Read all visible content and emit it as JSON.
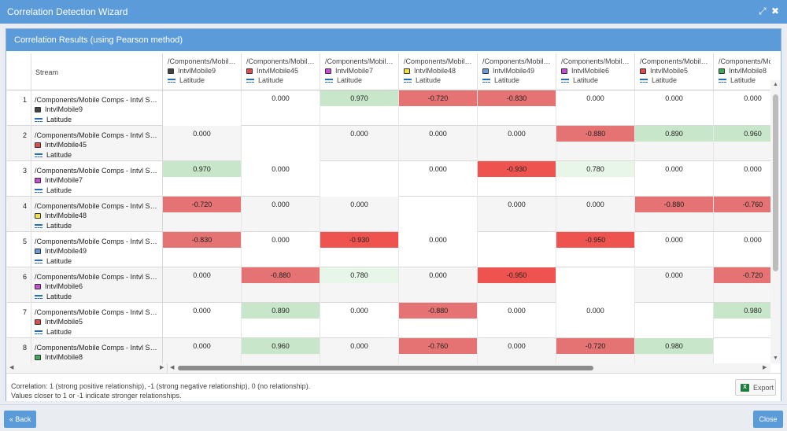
{
  "window": {
    "title": "Correlation Detection Wizard"
  },
  "panel": {
    "title": "Correlation Results (using Pearson method)"
  },
  "grid": {
    "stream_header": "Stream",
    "columns": [
      {
        "path": "/Components/Mobile Comps - Intvl Streams",
        "name": "IntvlMobile9",
        "chip_color": "#444444",
        "metric": "Latitude"
      },
      {
        "path": "/Components/Mobile Comps - Intvl Streams",
        "name": "IntvlMobile45",
        "chip_color": "#e14b4b",
        "metric": "Latitude"
      },
      {
        "path": "/Components/Mobile Comps - Intvl Streams",
        "name": "IntvlMobile7",
        "chip_color": "#c54fd4",
        "metric": "Latitude"
      },
      {
        "path": "/Components/Mobile Comps - Intvl Streams",
        "name": "IntvlMobile48",
        "chip_color": "#f0e04a",
        "metric": "Latitude"
      },
      {
        "path": "/Components/Mobile Comps - Intvl Streams",
        "name": "IntvlMobile49",
        "chip_color": "#6a9dd6",
        "metric": "Latitude"
      },
      {
        "path": "/Components/Mobile Comps - Intvl Streams",
        "name": "IntvlMobile6",
        "chip_color": "#c54fd4",
        "metric": "Latitude"
      },
      {
        "path": "/Components/Mobile Comps - Intvl Streams",
        "name": "IntvlMobile5",
        "chip_color": "#e14b4b",
        "metric": "Latitude"
      },
      {
        "path": "/Components/Mobile Comps - Intvl Streams",
        "name": "IntvlMobile8",
        "chip_color": "#3faa5a",
        "metric": "Latitude"
      }
    ],
    "rows": [
      {
        "num": "1",
        "path": "/Components/Mobile Comps - Intvl Streams",
        "name": "IntvlMobile9",
        "chip_color": "#444444",
        "metric": "Latitude",
        "values": [
          "",
          "0.000",
          "0.970",
          "-0.720",
          "-0.830",
          "0.000",
          "0.000",
          "0.000"
        ]
      },
      {
        "num": "2",
        "path": "/Components/Mobile Comps - Intvl Streams",
        "name": "IntvlMobile45",
        "chip_color": "#e14b4b",
        "metric": "Latitude",
        "values": [
          "0.000",
          "",
          "0.000",
          "0.000",
          "0.000",
          "-0.880",
          "0.890",
          "0.960"
        ]
      },
      {
        "num": "3",
        "path": "/Components/Mobile Comps - Intvl Streams",
        "name": "IntvlMobile7",
        "chip_color": "#c54fd4",
        "metric": "Latitude",
        "values": [
          "0.970",
          "0.000",
          "",
          "0.000",
          "-0.930",
          "0.780",
          "0.000",
          "0.000"
        ]
      },
      {
        "num": "4",
        "path": "/Components/Mobile Comps - Intvl Streams",
        "name": "IntvlMobile48",
        "chip_color": "#f0e04a",
        "metric": "Latitude",
        "values": [
          "-0.720",
          "0.000",
          "0.000",
          "",
          "0.000",
          "0.000",
          "-0.880",
          "-0.760"
        ]
      },
      {
        "num": "5",
        "path": "/Components/Mobile Comps - Intvl Streams",
        "name": "IntvlMobile49",
        "chip_color": "#6a9dd6",
        "metric": "Latitude",
        "values": [
          "-0.830",
          "0.000",
          "-0.930",
          "0.000",
          "",
          "-0.950",
          "0.000",
          "0.000"
        ]
      },
      {
        "num": "6",
        "path": "/Components/Mobile Comps - Intvl Streams",
        "name": "IntvlMobile6",
        "chip_color": "#c54fd4",
        "metric": "Latitude",
        "values": [
          "0.000",
          "-0.880",
          "0.780",
          "0.000",
          "-0.950",
          "",
          "0.000",
          "-0.720"
        ]
      },
      {
        "num": "7",
        "path": "/Components/Mobile Comps - Intvl Streams",
        "name": "IntvlMobile5",
        "chip_color": "#e14b4b",
        "metric": "Latitude",
        "values": [
          "0.000",
          "0.890",
          "0.000",
          "-0.880",
          "0.000",
          "0.000",
          "",
          "0.980"
        ]
      },
      {
        "num": "8",
        "path": "/Components/Mobile Comps - Intvl Streams",
        "name": "IntvlMobile8",
        "chip_color": "#3faa5a",
        "metric": "Latitude",
        "values": [
          "0.000",
          "0.960",
          "0.000",
          "-0.760",
          "0.000",
          "-0.720",
          "0.980",
          ""
        ]
      }
    ]
  },
  "colors": {
    "strong_negative": "#ef5350",
    "negative": "#e57373",
    "strong_positive": "#c8e6c9",
    "positive": "#e8f5e9",
    "header_blue": "#5b9bd9"
  },
  "footer": {
    "note1": "Correlation: 1 (strong positive relationship), -1 (strong negative relationship), 0 (no relationship).",
    "note2": "Values closer to 1 or -1 indicate stronger relationships.",
    "export_label": "Export"
  },
  "buttons": {
    "back": "« Back",
    "close": "Close"
  }
}
